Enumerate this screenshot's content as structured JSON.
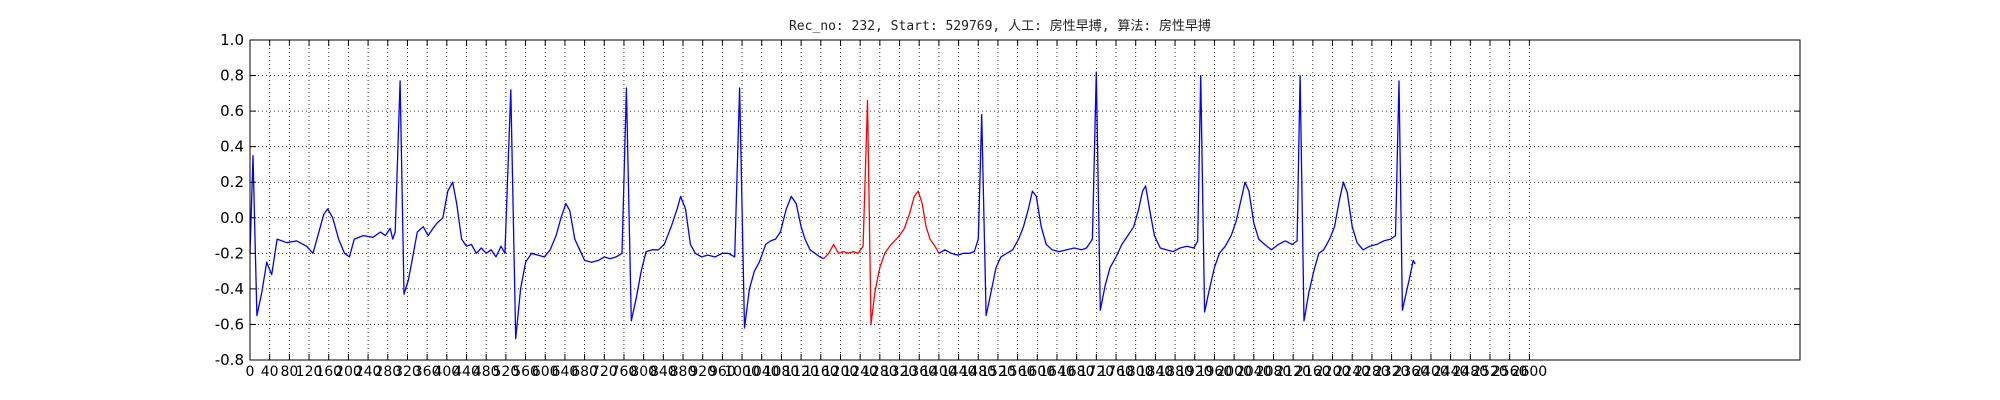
{
  "chart_data": {
    "type": "line",
    "title": "Rec_no: 232, Start: 529769, 人工: 房性早搏, 算法: 房性早搏",
    "xlabel": "",
    "ylabel": "",
    "xlim": [
      0,
      3150
    ],
    "ylim": [
      -0.8,
      1.0
    ],
    "grid": true,
    "legend": "none",
    "yticks": [
      "-0.8",
      "-0.6",
      "-0.4",
      "-0.2",
      "0.0",
      "0.2",
      "0.4",
      "0.6",
      "0.8",
      "1.0"
    ],
    "xtick_values": [
      0,
      40,
      80,
      120,
      160,
      200,
      240,
      280,
      320,
      360,
      400,
      440,
      480,
      520,
      560,
      600,
      640,
      680,
      720,
      760,
      800,
      840,
      880,
      920,
      960,
      1000,
      1040,
      1080,
      1120,
      1160,
      1200,
      1240,
      1280,
      1320,
      1360,
      1400,
      1440,
      1480,
      1520,
      1560,
      1600,
      1640,
      1680,
      1720,
      1760,
      1800,
      1840,
      1880,
      1920,
      1960,
      2000,
      2040,
      2080,
      2120,
      2160,
      2200,
      2240,
      2280,
      2320,
      2360,
      2400,
      2440,
      2480,
      2520,
      2560,
      2600
    ],
    "series": [
      {
        "segment": "normal",
        "color": "#0000ff",
        "points": [
          [
            0,
            -0.2
          ],
          [
            6,
            0.35
          ],
          [
            14,
            -0.55
          ],
          [
            24,
            -0.42
          ],
          [
            34,
            -0.25
          ],
          [
            44,
            -0.32
          ],
          [
            55,
            -0.12
          ],
          [
            75,
            -0.14
          ],
          [
            95,
            -0.13
          ],
          [
            115,
            -0.16
          ],
          [
            128,
            -0.2
          ],
          [
            138,
            -0.1
          ],
          [
            150,
            0.02
          ],
          [
            158,
            0.05
          ],
          [
            168,
            0.0
          ],
          [
            180,
            -0.12
          ],
          [
            192,
            -0.2
          ],
          [
            202,
            -0.22
          ],
          [
            212,
            -0.12
          ],
          [
            230,
            -0.1
          ],
          [
            250,
            -0.11
          ],
          [
            265,
            -0.08
          ],
          [
            275,
            -0.1
          ],
          [
            285,
            -0.06
          ],
          [
            290,
            -0.12
          ],
          [
            295,
            -0.08
          ],
          [
            305,
            0.77
          ],
          [
            313,
            -0.43
          ],
          [
            322,
            -0.35
          ],
          [
            332,
            -0.2
          ],
          [
            340,
            -0.08
          ],
          [
            352,
            -0.05
          ],
          [
            362,
            -0.1
          ],
          [
            372,
            -0.06
          ],
          [
            380,
            -0.03
          ],
          [
            392,
            0.0
          ],
          [
            402,
            0.15
          ],
          [
            412,
            0.2
          ],
          [
            420,
            0.08
          ],
          [
            430,
            -0.12
          ],
          [
            440,
            -0.16
          ],
          [
            450,
            -0.15
          ],
          [
            460,
            -0.2
          ],
          [
            470,
            -0.17
          ],
          [
            480,
            -0.2
          ],
          [
            490,
            -0.18
          ],
          [
            500,
            -0.22
          ],
          [
            510,
            -0.16
          ],
          [
            518,
            -0.2
          ],
          [
            530,
            0.72
          ],
          [
            540,
            -0.68
          ],
          [
            550,
            -0.4
          ],
          [
            560,
            -0.25
          ],
          [
            572,
            -0.2
          ],
          [
            585,
            -0.21
          ],
          [
            598,
            -0.22
          ],
          [
            610,
            -0.18
          ],
          [
            622,
            -0.1
          ],
          [
            632,
            0.0
          ],
          [
            642,
            0.08
          ],
          [
            650,
            0.04
          ],
          [
            660,
            -0.12
          ],
          [
            670,
            -0.18
          ],
          [
            680,
            -0.24
          ],
          [
            694,
            -0.25
          ],
          [
            708,
            -0.24
          ],
          [
            720,
            -0.22
          ],
          [
            732,
            -0.23
          ],
          [
            744,
            -0.22
          ],
          [
            756,
            -0.2
          ],
          [
            765,
            0.73
          ],
          [
            775,
            -0.58
          ],
          [
            785,
            -0.45
          ],
          [
            795,
            -0.3
          ],
          [
            805,
            -0.19
          ],
          [
            818,
            -0.18
          ],
          [
            830,
            -0.18
          ],
          [
            842,
            -0.15
          ],
          [
            856,
            -0.05
          ],
          [
            868,
            0.05
          ],
          [
            875,
            0.12
          ],
          [
            885,
            0.05
          ],
          [
            895,
            -0.15
          ],
          [
            905,
            -0.2
          ],
          [
            918,
            -0.22
          ],
          [
            930,
            -0.21
          ],
          [
            945,
            -0.22
          ],
          [
            960,
            -0.2
          ],
          [
            972,
            -0.2
          ],
          [
            985,
            -0.22
          ],
          [
            995,
            0.73
          ],
          [
            1005,
            -0.62
          ],
          [
            1015,
            -0.4
          ],
          [
            1025,
            -0.3
          ],
          [
            1035,
            -0.25
          ],
          [
            1048,
            -0.15
          ],
          [
            1058,
            -0.13
          ],
          [
            1068,
            -0.12
          ],
          [
            1078,
            -0.08
          ],
          [
            1090,
            0.05
          ],
          [
            1100,
            0.12
          ],
          [
            1110,
            0.08
          ],
          [
            1120,
            -0.05
          ],
          [
            1128,
            -0.12
          ],
          [
            1138,
            -0.18
          ],
          [
            1148,
            -0.2
          ],
          [
            1158,
            -0.22
          ],
          [
            1166,
            -0.23
          ]
        ]
      },
      {
        "segment": "annotated beat",
        "color": "#ff0000",
        "points": [
          [
            1166,
            -0.23
          ],
          [
            1176,
            -0.2
          ],
          [
            1186,
            -0.15
          ],
          [
            1196,
            -0.2
          ],
          [
            1206,
            -0.19
          ],
          [
            1216,
            -0.2
          ],
          [
            1226,
            -0.19
          ],
          [
            1236,
            -0.2
          ],
          [
            1246,
            -0.16
          ],
          [
            1255,
            0.66
          ],
          [
            1262,
            -0.6
          ],
          [
            1270,
            -0.42
          ],
          [
            1280,
            -0.28
          ],
          [
            1290,
            -0.2
          ],
          [
            1300,
            -0.16
          ],
          [
            1310,
            -0.13
          ],
          [
            1320,
            -0.1
          ],
          [
            1330,
            -0.06
          ],
          [
            1340,
            0.02
          ],
          [
            1350,
            0.12
          ],
          [
            1358,
            0.15
          ],
          [
            1366,
            0.08
          ],
          [
            1374,
            -0.05
          ],
          [
            1382,
            -0.12
          ],
          [
            1392,
            -0.16
          ],
          [
            1400,
            -0.2
          ]
        ]
      },
      {
        "segment": "normal",
        "color": "#0000ff",
        "points": [
          [
            1400,
            -0.2
          ],
          [
            1412,
            -0.18
          ],
          [
            1425,
            -0.2
          ],
          [
            1438,
            -0.21
          ],
          [
            1450,
            -0.2
          ],
          [
            1462,
            -0.2
          ],
          [
            1472,
            -0.19
          ],
          [
            1480,
            -0.12
          ],
          [
            1487,
            0.58
          ],
          [
            1496,
            -0.55
          ],
          [
            1506,
            -0.42
          ],
          [
            1516,
            -0.28
          ],
          [
            1526,
            -0.22
          ],
          [
            1538,
            -0.2
          ],
          [
            1550,
            -0.18
          ],
          [
            1562,
            -0.12
          ],
          [
            1572,
            -0.05
          ],
          [
            1582,
            0.05
          ],
          [
            1590,
            0.15
          ],
          [
            1598,
            0.12
          ],
          [
            1608,
            -0.05
          ],
          [
            1618,
            -0.15
          ],
          [
            1630,
            -0.18
          ],
          [
            1645,
            -0.19
          ],
          [
            1660,
            -0.18
          ],
          [
            1675,
            -0.17
          ],
          [
            1690,
            -0.18
          ],
          [
            1700,
            -0.17
          ],
          [
            1712,
            -0.12
          ],
          [
            1720,
            0.82
          ],
          [
            1728,
            -0.52
          ],
          [
            1738,
            -0.38
          ],
          [
            1748,
            -0.28
          ],
          [
            1760,
            -0.22
          ],
          [
            1772,
            -0.15
          ],
          [
            1784,
            -0.1
          ],
          [
            1796,
            -0.05
          ],
          [
            1806,
            0.05
          ],
          [
            1814,
            0.15
          ],
          [
            1820,
            0.18
          ],
          [
            1828,
            0.05
          ],
          [
            1838,
            -0.1
          ],
          [
            1850,
            -0.17
          ],
          [
            1862,
            -0.18
          ],
          [
            1876,
            -0.19
          ],
          [
            1890,
            -0.17
          ],
          [
            1904,
            -0.16
          ],
          [
            1918,
            -0.17
          ],
          [
            1926,
            -0.13
          ],
          [
            1932,
            0.8
          ],
          [
            1940,
            -0.53
          ],
          [
            1950,
            -0.4
          ],
          [
            1960,
            -0.28
          ],
          [
            1970,
            -0.2
          ],
          [
            1982,
            -0.16
          ],
          [
            1994,
            -0.1
          ],
          [
            2004,
            -0.02
          ],
          [
            2014,
            0.1
          ],
          [
            2022,
            0.2
          ],
          [
            2030,
            0.15
          ],
          [
            2040,
            -0.03
          ],
          [
            2050,
            -0.12
          ],
          [
            2062,
            -0.15
          ],
          [
            2076,
            -0.18
          ],
          [
            2090,
            -0.15
          ],
          [
            2104,
            -0.13
          ],
          [
            2118,
            -0.15
          ],
          [
            2128,
            -0.13
          ],
          [
            2134,
            0.8
          ],
          [
            2142,
            -0.58
          ],
          [
            2152,
            -0.42
          ],
          [
            2162,
            -0.3
          ],
          [
            2172,
            -0.2
          ],
          [
            2182,
            -0.18
          ],
          [
            2194,
            -0.12
          ],
          [
            2204,
            -0.05
          ],
          [
            2214,
            0.1
          ],
          [
            2222,
            0.2
          ],
          [
            2230,
            0.14
          ],
          [
            2240,
            -0.05
          ],
          [
            2250,
            -0.14
          ],
          [
            2262,
            -0.18
          ],
          [
            2276,
            -0.16
          ],
          [
            2290,
            -0.15
          ],
          [
            2304,
            -0.13
          ],
          [
            2318,
            -0.12
          ],
          [
            2328,
            -0.1
          ],
          [
            2335,
            0.77
          ],
          [
            2342,
            -0.52
          ],
          [
            2350,
            -0.42
          ],
          [
            2358,
            -0.32
          ],
          [
            2364,
            -0.24
          ],
          [
            2368,
            -0.26
          ]
        ]
      }
    ]
  }
}
